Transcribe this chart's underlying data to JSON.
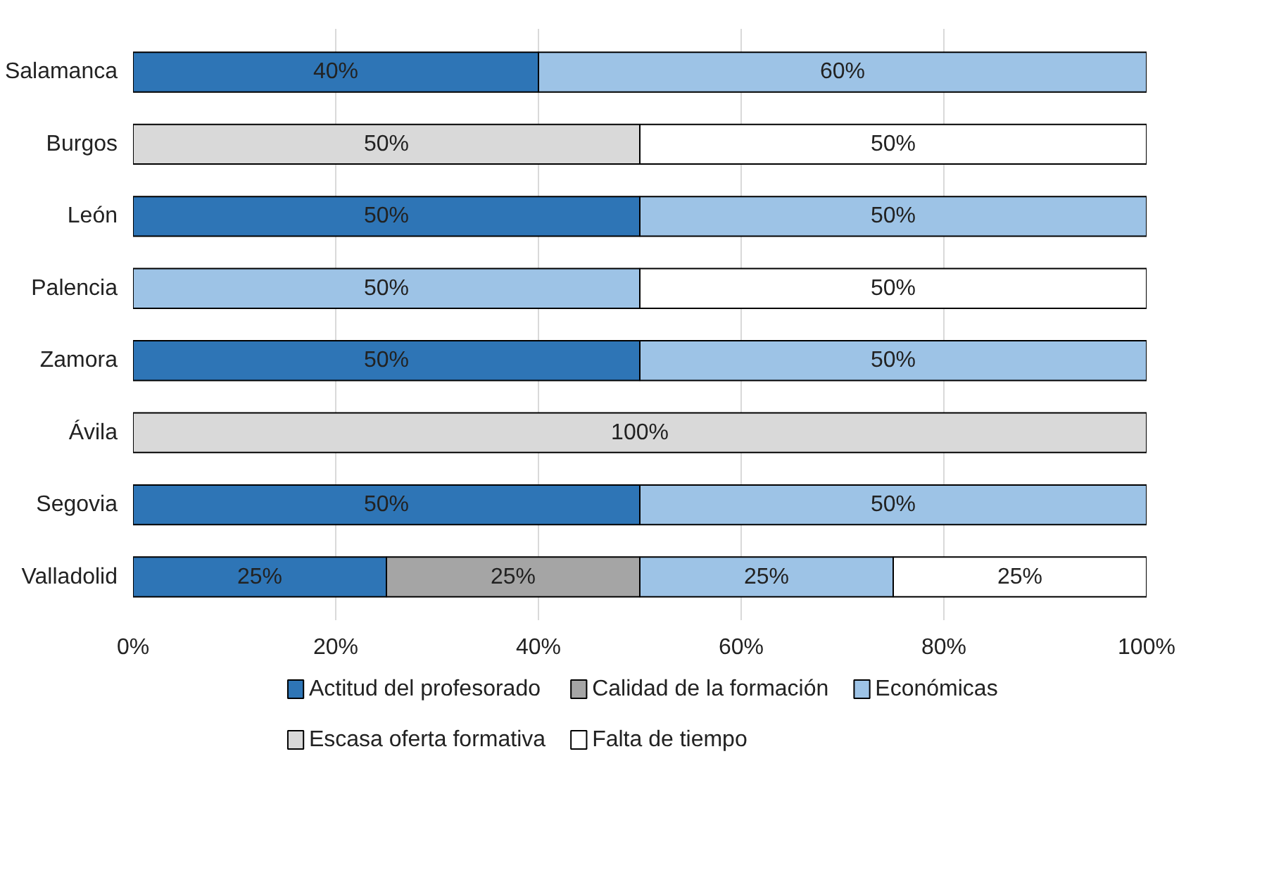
{
  "chart_data": {
    "type": "bar",
    "orientation": "horizontal",
    "stacked": true,
    "categories": [
      "Salamanca",
      "Burgos",
      "León",
      "Palencia",
      "Zamora",
      "Ávila",
      "Segovia",
      "Valladolid"
    ],
    "series": [
      {
        "name": "Actitud del profesorado",
        "color": "#2e75b6",
        "values": [
          40,
          null,
          50,
          null,
          50,
          null,
          50,
          25
        ],
        "value_labels": [
          "40%",
          null,
          "50%",
          null,
          "50%",
          null,
          "50%",
          "25%"
        ]
      },
      {
        "name": "Calidad de la formación",
        "color": "#a5a5a5",
        "values": [
          null,
          null,
          null,
          null,
          null,
          null,
          null,
          25
        ],
        "value_labels": [
          null,
          null,
          null,
          null,
          null,
          null,
          null,
          "25%"
        ]
      },
      {
        "name": "Económicas",
        "color": "#9dc3e6",
        "values": [
          60,
          null,
          50,
          50,
          50,
          null,
          50,
          25
        ],
        "value_labels": [
          "60%",
          null,
          "50%",
          "50%",
          "50%",
          null,
          "50%",
          "25%"
        ]
      },
      {
        "name": "Escasa oferta formativa",
        "color": "#d9d9d9",
        "values": [
          null,
          50,
          null,
          null,
          null,
          100,
          null,
          null
        ],
        "value_labels": [
          null,
          "50%",
          null,
          null,
          null,
          "100%",
          null,
          null
        ]
      },
      {
        "name": "Falta de tiempo",
        "color": "#ffffff",
        "values": [
          null,
          50,
          null,
          50,
          null,
          null,
          null,
          25
        ],
        "value_labels": [
          null,
          "50%",
          null,
          "50%",
          null,
          null,
          null,
          "25%"
        ]
      }
    ],
    "xlim": [
      0,
      100
    ],
    "xticks": [
      {
        "value": 0,
        "label": "0%"
      },
      {
        "value": 20,
        "label": "20%"
      },
      {
        "value": 40,
        "label": "40%"
      },
      {
        "value": 60,
        "label": "60%"
      },
      {
        "value": 80,
        "label": "80%"
      },
      {
        "value": 100,
        "label": "100%"
      }
    ],
    "grid": "x",
    "legend": "bottom"
  }
}
